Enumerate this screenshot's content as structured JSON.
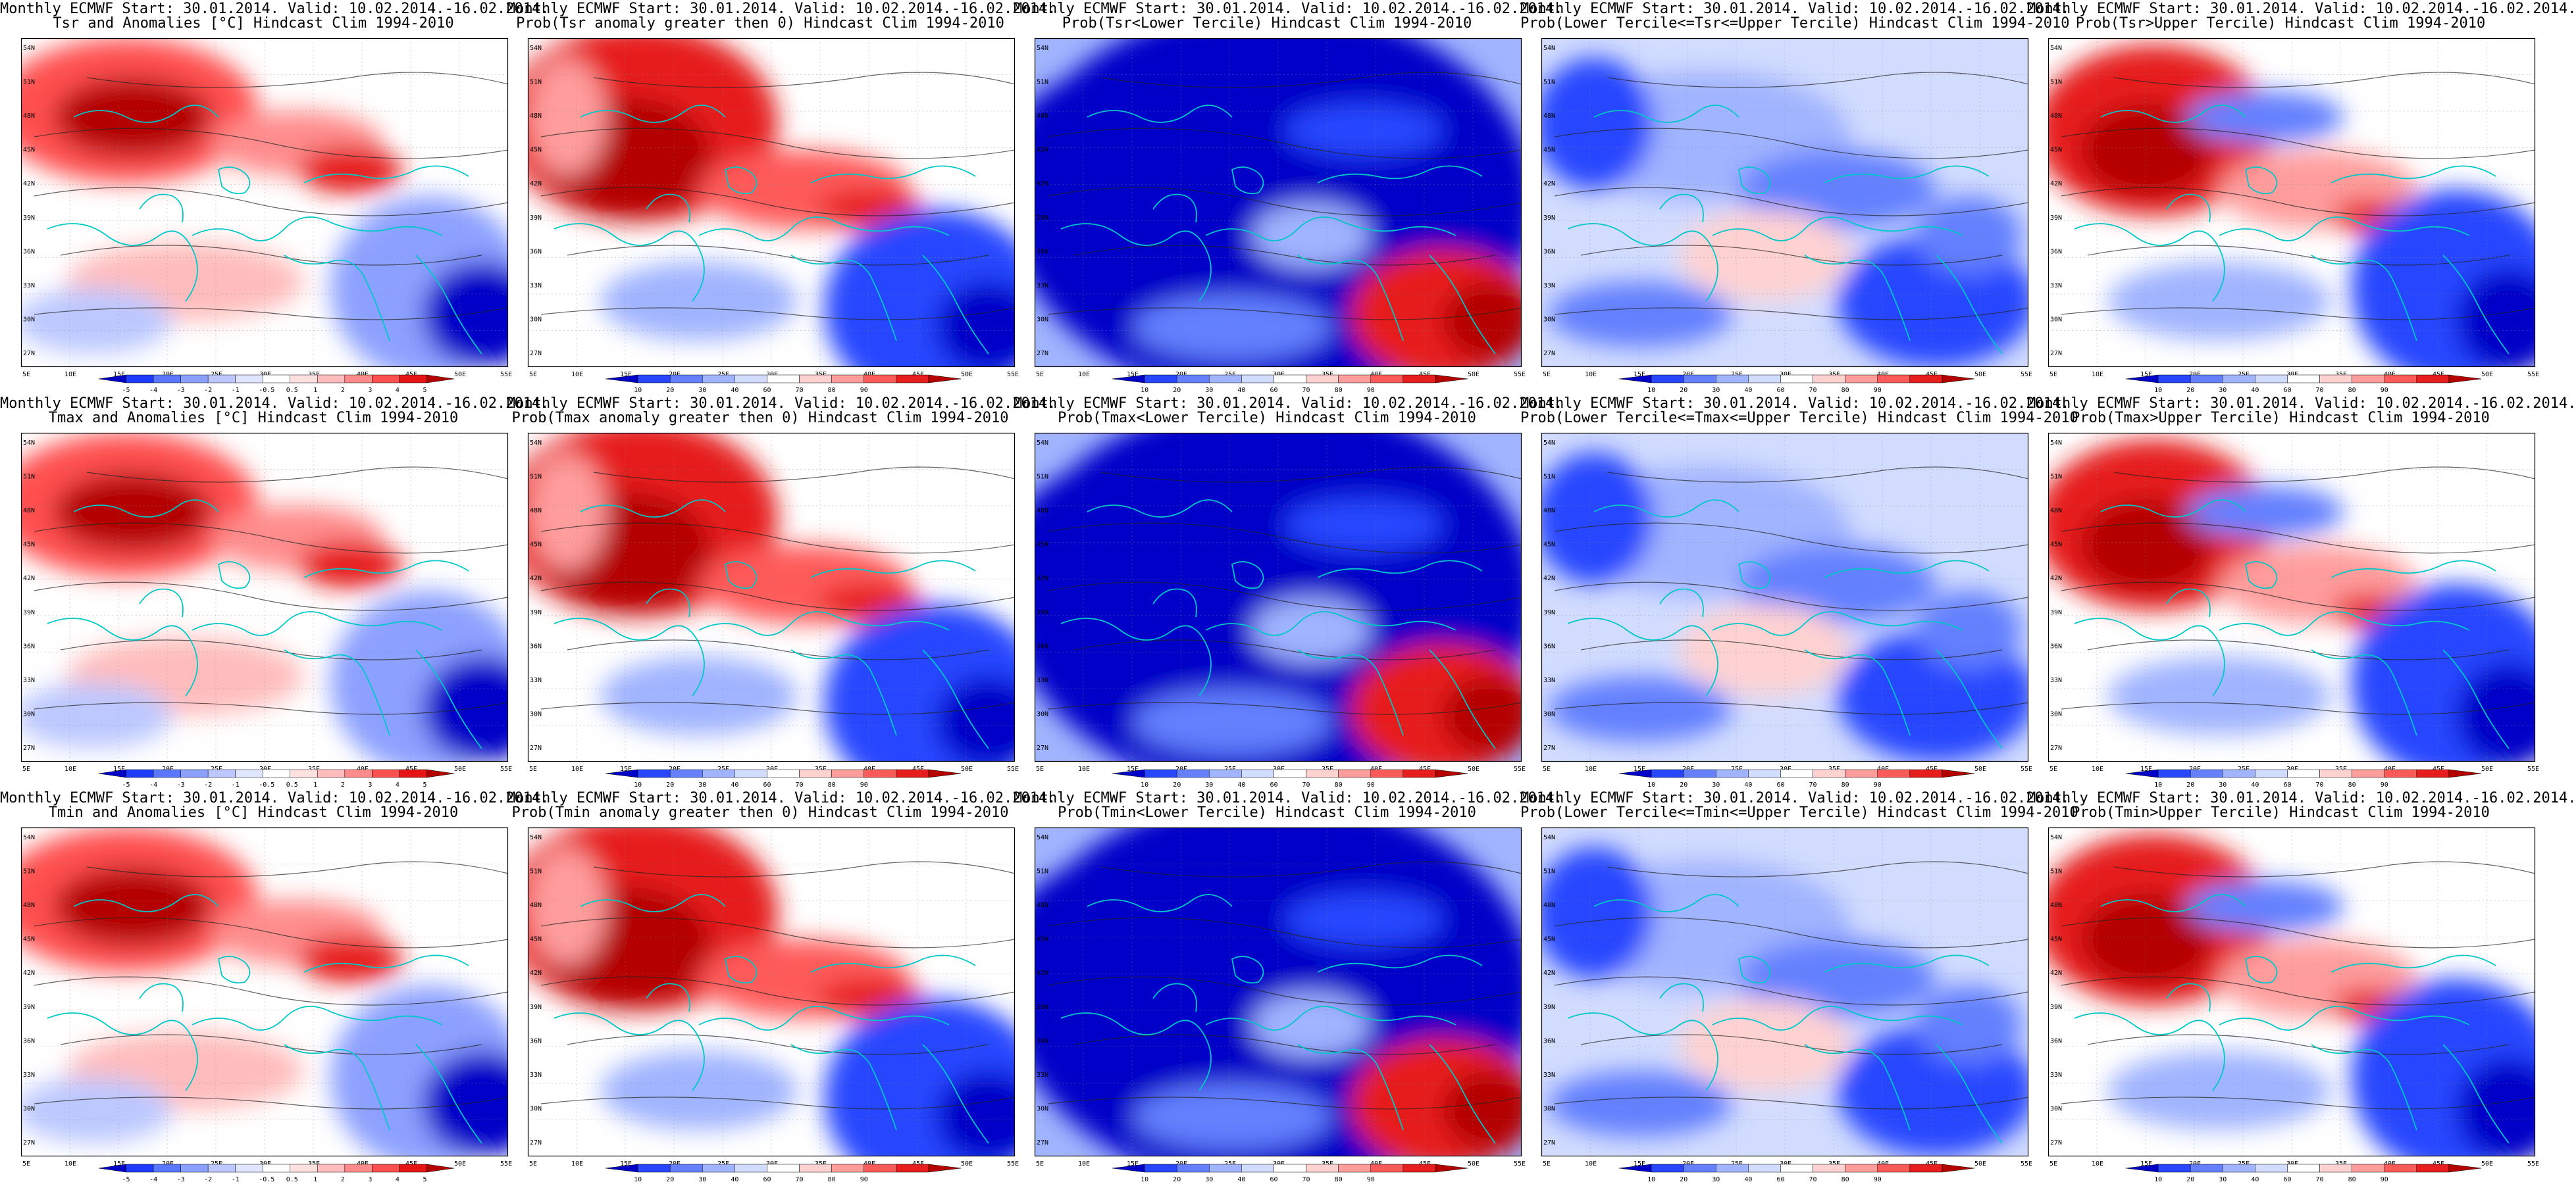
{
  "palettes": {
    "anom": [
      "#0000c8",
      "#1e3cff",
      "#5a78ff",
      "#8ca0ff",
      "#bcc8ff",
      "#e0e6ff",
      "#ffffff",
      "#ffe0e0",
      "#ffbcbc",
      "#ff8c8c",
      "#ff5050",
      "#e61414",
      "#b40000"
    ],
    "prob": [
      "#0000c8",
      "#2846ff",
      "#6480ff",
      "#a0b4ff",
      "#d2dcff",
      "#ffffff",
      "#ffd2d2",
      "#ff9c9c",
      "#ff5a5a",
      "#e61e1e",
      "#b40000"
    ]
  },
  "coast_color": "#00c8c8",
  "axis_ticks": {
    "lon": [
      "5E",
      "10E",
      "15E",
      "20E",
      "25E",
      "30E",
      "35E",
      "40E",
      "45E",
      "50E",
      "55E"
    ],
    "lat": [
      "27N",
      "30N",
      "33N",
      "36N",
      "39N",
      "42N",
      "45N",
      "48N",
      "51N",
      "54N"
    ]
  },
  "colorbars": {
    "anom": [
      "-5",
      "-4",
      "-3",
      "-2",
      "-1",
      "-0.5",
      "0.5",
      "1",
      "2",
      "3",
      "4",
      "5"
    ],
    "prob": [
      "10",
      "20",
      "30",
      "40",
      "60",
      "70",
      "80",
      "90"
    ]
  },
  "panels": [
    {
      "line1": "Monthly ECMWF Start: 30.01.2014. Valid: 10.02.2014.-16.02.2014.",
      "line2": "Tsr and Anomalies [°C] Hindcast Clim 1994-2010",
      "type": "anom",
      "pattern": "ano"
    },
    {
      "line1": "Monthly ECMWF Start: 30.01.2014. Valid: 10.02.2014.-16.02.2014.",
      "line2": "Prob(Tsr anomaly greater then 0) Hindcast Clim 1994-2010",
      "type": "prob",
      "pattern": "pos"
    },
    {
      "line1": "Monthly ECMWF Start: 30.01.2014. Valid: 10.02.2014.-16.02.2014.",
      "line2": "Prob(Tsr<Lower Tercile) Hindcast Clim 1994-2010",
      "type": "prob",
      "pattern": "low"
    },
    {
      "line1": "Monthly ECMWF Start: 30.01.2014. Valid: 10.02.2014.-16.02.2014.",
      "line2": "Prob(Lower Tercile<=Tsr<=Upper Tercile) Hindcast Clim 1994-2010",
      "type": "prob",
      "pattern": "mid"
    },
    {
      "line1": "Monthly ECMWF Start: 30.01.2014. Valid: 10.02.2014.-16.02.2014.",
      "line2": "Prob(Tsr>Upper Tercile) Hindcast Clim 1994-2010",
      "type": "prob",
      "pattern": "up"
    },
    {
      "line1": "Monthly ECMWF Start: 30.01.2014. Valid: 10.02.2014.-16.02.2014.",
      "line2": "Tmax and Anomalies [°C] Hindcast Clim 1994-2010",
      "type": "anom",
      "pattern": "ano"
    },
    {
      "line1": "Monthly ECMWF Start: 30.01.2014. Valid: 10.02.2014.-16.02.2014.",
      "line2": "Prob(Tmax anomaly greater then 0) Hindcast Clim 1994-2010",
      "type": "prob",
      "pattern": "pos"
    },
    {
      "line1": "Monthly ECMWF Start: 30.01.2014. Valid: 10.02.2014.-16.02.2014.",
      "line2": "Prob(Tmax<Lower Tercile) Hindcast Clim 1994-2010",
      "type": "prob",
      "pattern": "low"
    },
    {
      "line1": "Monthly ECMWF Start: 30.01.2014. Valid: 10.02.2014.-16.02.2014.",
      "line2": "Prob(Lower Tercile<=Tmax<=Upper Tercile) Hindcast Clim 1994-2010",
      "type": "prob",
      "pattern": "mid"
    },
    {
      "line1": "Monthly ECMWF Start: 30.01.2014. Valid: 10.02.2014.-16.02.2014.",
      "line2": "Prob(Tmax>Upper Tercile) Hindcast Clim 1994-2010",
      "type": "prob",
      "pattern": "up"
    },
    {
      "line1": "Monthly ECMWF Start: 30.01.2014. Valid: 10.02.2014.-16.02.2014.",
      "line2": "Tmin and Anomalies [°C] Hindcast Clim 1994-2010",
      "type": "anom",
      "pattern": "ano"
    },
    {
      "line1": "Monthly ECMWF Start: 30.01.2014. Valid: 10.02.2014.-16.02.2014.",
      "line2": "Prob(Tmin anomaly greater then 0) Hindcast Clim 1994-2010",
      "type": "prob",
      "pattern": "pos"
    },
    {
      "line1": "Monthly ECMWF Start: 30.01.2014. Valid: 10.02.2014.-16.02.2014.",
      "line2": "Prob(Tmin<Lower Tercile) Hindcast Clim 1994-2010",
      "type": "prob",
      "pattern": "low"
    },
    {
      "line1": "Monthly ECMWF Start: 30.01.2014. Valid: 10.02.2014.-16.02.2014.",
      "line2": "Prob(Lower Tercile<=Tmin<=Upper Tercile) Hindcast Clim 1994-2010",
      "type": "prob",
      "pattern": "mid"
    },
    {
      "line1": "Monthly ECMWF Start: 30.01.2014. Valid: 10.02.2014.-16.02.2014.",
      "line2": "Prob(Tmin>Upper Tercile) Hindcast Clim 1994-2010",
      "type": "prob",
      "pattern": "up"
    }
  ]
}
